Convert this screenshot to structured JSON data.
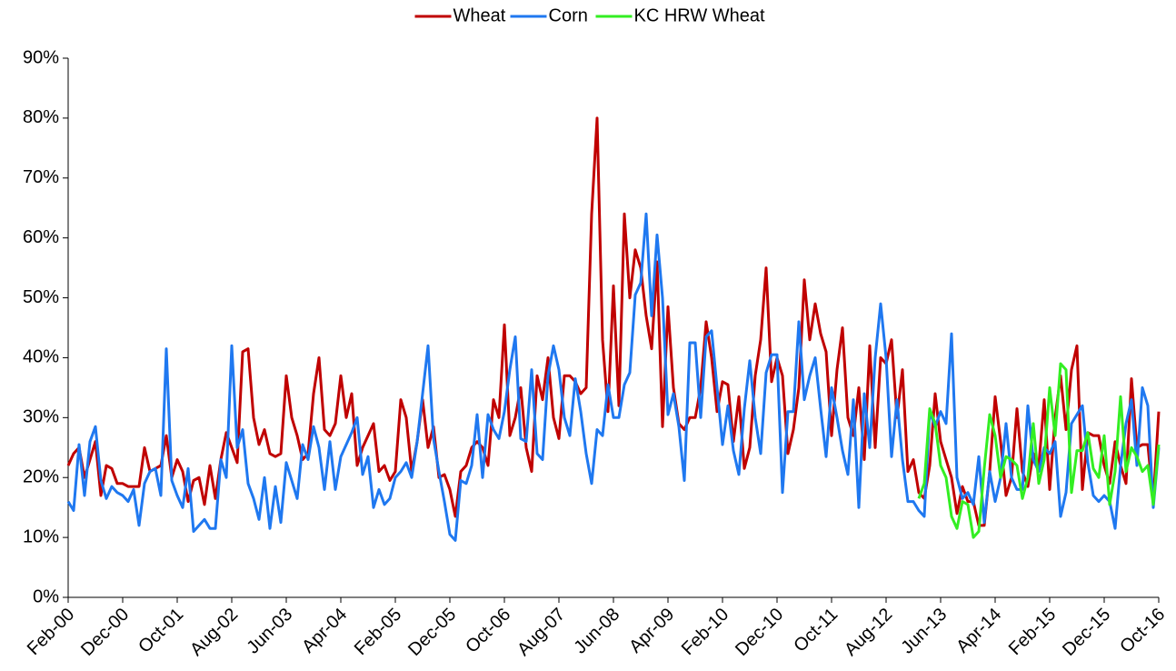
{
  "chart_data": {
    "type": "line",
    "legend": "top",
    "grid": false,
    "categories": [
      "Feb-00",
      null,
      null,
      null,
      null,
      null,
      null,
      null,
      null,
      null,
      "Dec-00",
      null,
      null,
      null,
      null,
      null,
      null,
      null,
      null,
      null,
      "Oct-01",
      null,
      null,
      null,
      null,
      null,
      null,
      null,
      null,
      null,
      "Aug-02",
      null,
      null,
      null,
      null,
      null,
      null,
      null,
      null,
      null,
      "Jun-03",
      null,
      null,
      null,
      null,
      null,
      null,
      null,
      null,
      null,
      "Apr-04",
      null,
      null,
      null,
      null,
      null,
      null,
      null,
      null,
      null,
      "Feb-05",
      null,
      null,
      null,
      null,
      null,
      null,
      null,
      null,
      null,
      "Dec-05",
      null,
      null,
      null,
      null,
      null,
      null,
      null,
      null,
      null,
      "Oct-06",
      null,
      null,
      null,
      null,
      null,
      null,
      null,
      null,
      null,
      "Aug-07",
      null,
      null,
      null,
      null,
      null,
      null,
      null,
      null,
      null,
      "Jun-08",
      null,
      null,
      null,
      null,
      null,
      null,
      null,
      null,
      null,
      "Apr-09",
      null,
      null,
      null,
      null,
      null,
      null,
      null,
      null,
      null,
      "Feb-10",
      null,
      null,
      null,
      null,
      null,
      null,
      null,
      null,
      null,
      "Dec-10",
      null,
      null,
      null,
      null,
      null,
      null,
      null,
      null,
      null,
      "Oct-11",
      null,
      null,
      null,
      null,
      null,
      null,
      null,
      null,
      null,
      "Aug-12",
      null,
      null,
      null,
      null,
      null,
      null,
      null,
      null,
      null,
      "Jun-13",
      null,
      null,
      null,
      null,
      null,
      null,
      null,
      null,
      null,
      "Apr-14",
      null,
      null,
      null,
      null,
      null,
      null,
      null,
      null,
      null,
      "Feb-15",
      null,
      null,
      null,
      null,
      null,
      null,
      null,
      null,
      null,
      "Dec-15",
      null,
      null,
      null,
      null,
      null,
      null,
      null,
      null,
      null,
      "Oct-16"
    ],
    "series": [
      {
        "name": "Wheat",
        "color": "#c00000",
        "values": [
          22,
          24,
          25,
          20,
          23,
          26,
          17,
          22,
          21.5,
          19,
          19,
          18.5,
          18.5,
          18.5,
          25,
          21,
          21.5,
          22,
          27,
          20,
          23,
          21,
          16,
          19.5,
          20,
          15.5,
          22,
          16.5,
          23,
          27.5,
          25,
          22.5,
          41,
          41.5,
          30,
          25.5,
          28,
          24,
          23.5,
          24,
          37,
          30,
          27,
          23,
          24,
          34,
          40,
          28,
          27,
          29,
          37,
          30,
          34,
          22,
          25,
          27,
          29,
          21,
          22,
          19.5,
          21,
          33,
          30,
          21,
          26,
          33,
          25,
          28.5,
          20,
          20.5,
          18,
          13.5,
          21,
          22,
          25,
          26,
          25,
          22,
          33,
          30,
          45.5,
          27,
          30,
          35,
          25,
          21,
          37,
          33,
          40,
          30,
          26.5,
          37,
          37,
          36,
          34,
          35,
          64,
          80,
          43,
          31,
          52,
          32,
          64,
          50,
          58,
          55,
          47,
          41.5,
          56,
          28.5,
          48.5,
          35,
          29,
          28,
          30,
          30,
          35,
          46,
          40,
          31,
          36,
          35.5,
          26,
          33.5,
          21.5,
          25,
          37,
          43,
          55,
          36,
          40,
          37,
          24,
          28,
          35,
          53,
          43,
          49,
          44,
          41,
          27,
          38,
          45,
          30,
          27,
          35,
          23,
          42,
          25,
          40,
          39,
          43,
          30,
          38,
          21,
          23,
          17.5,
          16.5,
          22,
          34,
          26,
          23,
          20,
          14,
          18.5,
          16,
          16,
          12,
          12,
          21,
          33.5,
          26,
          17,
          20,
          31.5,
          21,
          18.5,
          24,
          22,
          33,
          18,
          30,
          37,
          28,
          38,
          42,
          18,
          27.5,
          27,
          27,
          22,
          19,
          26,
          22,
          19,
          36.5,
          25,
          25.5,
          25.5,
          16,
          31
        ]
      },
      {
        "name": "Corn",
        "color": "#1f78f0",
        "values": [
          16,
          14.5,
          25.5,
          17,
          26,
          28.5,
          19.5,
          16.5,
          18.5,
          17.5,
          17,
          16,
          18,
          12,
          19,
          21,
          21.5,
          17,
          41.5,
          19.5,
          17,
          15,
          21.5,
          11,
          12,
          13,
          11.5,
          11.5,
          23,
          20,
          42,
          25,
          28,
          19,
          16.5,
          13,
          20,
          11.5,
          18.5,
          12.5,
          22.5,
          19.5,
          16.5,
          25.5,
          23,
          28.5,
          25,
          18,
          26,
          18,
          23.5,
          25.5,
          27.5,
          30,
          20.5,
          23.5,
          15,
          18,
          15.5,
          16.5,
          20,
          21,
          22.5,
          20,
          26,
          34,
          42,
          26.5,
          21,
          16,
          10.5,
          9.5,
          19.5,
          19,
          22,
          30.5,
          20,
          30.5,
          28,
          26.5,
          31,
          38,
          43.5,
          26.5,
          26,
          38,
          24,
          23,
          37,
          42,
          38,
          30,
          27,
          36.5,
          31,
          24,
          19,
          28,
          27,
          35.5,
          30,
          30,
          35.5,
          37.5,
          50.5,
          52.5,
          64,
          47,
          60.5,
          50,
          30.5,
          34,
          28.5,
          19.5,
          42.5,
          42.5,
          30,
          43.5,
          44.5,
          35,
          25.5,
          32,
          24.5,
          20.5,
          31.5,
          39.5,
          30,
          24,
          37.5,
          40.5,
          40.5,
          17.5,
          31,
          31,
          46,
          33,
          37,
          40,
          31.5,
          23.5,
          35,
          30,
          24.5,
          20.5,
          33,
          15,
          34,
          25,
          40,
          49,
          40,
          23.5,
          33,
          23,
          16,
          16,
          14.5,
          13.5,
          31,
          28.5,
          31,
          29,
          44,
          20,
          16.5,
          17.5,
          15.5,
          23.5,
          12.5,
          21,
          16,
          20,
          29,
          20,
          18,
          18,
          32,
          23,
          21,
          25,
          24,
          26,
          13.5,
          17.5,
          29,
          30.5,
          32,
          22.5,
          17,
          16,
          17,
          16,
          11.5,
          22,
          29,
          33,
          22,
          35,
          32,
          15,
          25
        ]
      },
      {
        "name": "KC HRW Wheat",
        "color": "#33ee22",
        "values": [
          null,
          null,
          null,
          null,
          null,
          null,
          null,
          null,
          null,
          null,
          null,
          null,
          null,
          null,
          null,
          null,
          null,
          null,
          null,
          null,
          null,
          null,
          null,
          null,
          null,
          null,
          null,
          null,
          null,
          null,
          null,
          null,
          null,
          null,
          null,
          null,
          null,
          null,
          null,
          null,
          null,
          null,
          null,
          null,
          null,
          null,
          null,
          null,
          null,
          null,
          null,
          null,
          null,
          null,
          null,
          null,
          null,
          null,
          null,
          null,
          null,
          null,
          null,
          null,
          null,
          null,
          null,
          null,
          null,
          null,
          null,
          null,
          null,
          null,
          null,
          null,
          null,
          null,
          null,
          null,
          null,
          null,
          null,
          null,
          null,
          null,
          null,
          null,
          null,
          null,
          null,
          null,
          null,
          null,
          null,
          null,
          null,
          null,
          null,
          null,
          null,
          null,
          null,
          null,
          null,
          null,
          null,
          null,
          null,
          null,
          null,
          null,
          null,
          null,
          null,
          null,
          null,
          null,
          null,
          null,
          null,
          null,
          null,
          null,
          null,
          null,
          null,
          null,
          null,
          null,
          null,
          null,
          null,
          null,
          null,
          null,
          null,
          null,
          null,
          null,
          null,
          null,
          null,
          null,
          null,
          null,
          null,
          null,
          null,
          null,
          null,
          null,
          null,
          null,
          null,
          null,
          16.5,
          19,
          31.5,
          29,
          22,
          20,
          13.5,
          11.5,
          16,
          15.5,
          10,
          11,
          21.5,
          30.5,
          27,
          20,
          23.5,
          23,
          22,
          16.5,
          20,
          29,
          19,
          23,
          35,
          27,
          39,
          38,
          17.5,
          24.5,
          24.5,
          27.5,
          21.5,
          20,
          27,
          15.5,
          21,
          33.5,
          21,
          25,
          23.5,
          21,
          22,
          15.5,
          25.5
        ]
      }
    ],
    "ylim": [
      0,
      90
    ],
    "yticks": [
      {
        "value": 0,
        "label": "0%"
      },
      {
        "value": 10,
        "label": "10%"
      },
      {
        "value": 20,
        "label": "20%"
      },
      {
        "value": 30,
        "label": "30%"
      },
      {
        "value": 40,
        "label": "40%"
      },
      {
        "value": 50,
        "label": "50%"
      },
      {
        "value": 60,
        "label": "60%"
      },
      {
        "value": 70,
        "label": "70%"
      },
      {
        "value": 80,
        "label": "80%"
      },
      {
        "value": 90,
        "label": "90%"
      }
    ]
  }
}
